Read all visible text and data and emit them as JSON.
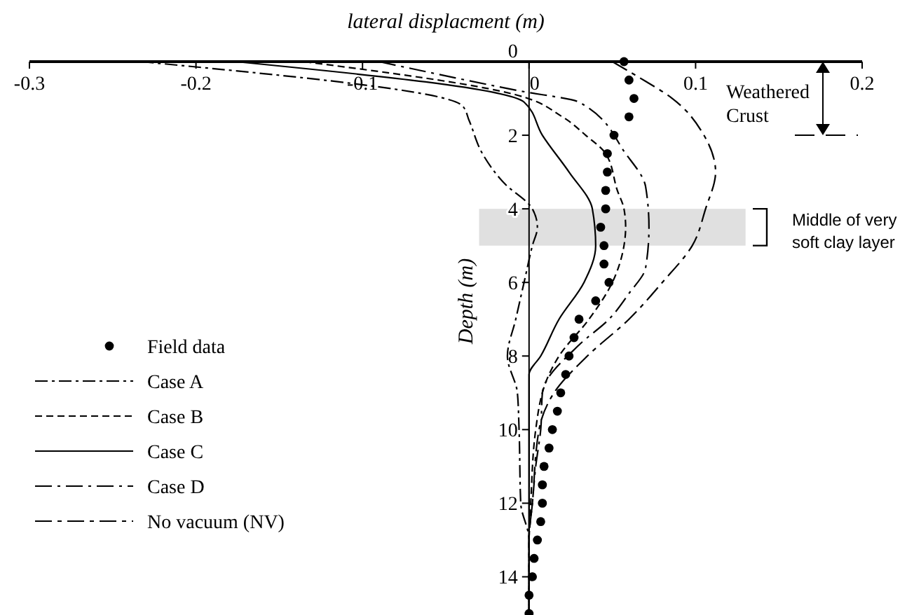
{
  "chart_data": {
    "type": "line",
    "xlabel": "lateral displacment (m)",
    "ylabel": "Depth (m)",
    "xlim": [
      -0.3,
      0.2
    ],
    "xticks": [
      -0.3,
      -0.2,
      -0.1,
      0,
      0.1,
      0.2
    ],
    "ylim": [
      15,
      0
    ],
    "yticks": [
      0,
      2,
      4,
      6,
      8,
      10,
      12,
      14
    ],
    "legend": "left",
    "series": [
      {
        "name": "Field data",
        "type": "scatter",
        "marker": "circle",
        "color": "#000000",
        "x": [
          0.057,
          0.06,
          0.063,
          0.06,
          0.051,
          0.047,
          0.047,
          0.046,
          0.046,
          0.043,
          0.045,
          0.045,
          0.048,
          0.04,
          0.03,
          0.027,
          0.024,
          0.022,
          0.019,
          0.017,
          0.014,
          0.012,
          0.009,
          0.008,
          0.008,
          0.007,
          0.005,
          0.003,
          0.002,
          0.0,
          0.0
        ],
        "values": [
          0,
          0.5,
          1,
          1.5,
          2,
          2.5,
          3,
          3.5,
          4,
          4.5,
          5,
          5.5,
          6,
          6.5,
          7,
          7.5,
          8,
          8.5,
          9,
          9.5,
          10,
          10.5,
          11,
          11.5,
          12,
          12.5,
          13,
          13.5,
          14,
          14.5,
          15
        ]
      },
      {
        "name": "Case A",
        "line_style": "dashdot",
        "color": "#000000",
        "x": [
          -0.233,
          -0.04,
          -0.036,
          -0.028,
          -0.015,
          0.002,
          0.005,
          0.002,
          -0.003,
          -0.008,
          -0.013,
          -0.007,
          -0.006,
          -0.005,
          0,
          0
        ],
        "values": [
          0,
          1.2,
          1.6,
          2.5,
          3.3,
          4,
          4.5,
          5,
          6,
          7,
          8,
          9,
          10,
          12,
          13,
          15
        ]
      },
      {
        "name": "Case B",
        "line_style": "dashed",
        "color": "#000000",
        "x": [
          -0.135,
          -0.008,
          0.02,
          0.034,
          0.046,
          0.053,
          0.057,
          0.058,
          0.057,
          0.05,
          0.036,
          0.018,
          0.012,
          0.004,
          0.001,
          0,
          0
        ],
        "values": [
          0,
          0.9,
          1.5,
          2,
          2.5,
          3.5,
          4,
          4.5,
          5,
          6,
          7,
          8,
          8.5,
          10,
          12,
          13,
          15
        ]
      },
      {
        "name": "Case C",
        "line_style": "solid",
        "color": "#000000",
        "x": [
          -0.176,
          -0.003,
          0.008,
          0.024,
          0.038,
          0.04,
          0.033,
          0.018,
          0.007,
          0,
          0
        ],
        "values": [
          0,
          1.1,
          2,
          3,
          4,
          5,
          6,
          7,
          8,
          8.5,
          15
        ]
      },
      {
        "name": "Case D",
        "line_style": "longdashdot",
        "color": "#000000",
        "x": [
          -0.09,
          -0.005,
          0.03,
          0.058,
          0.07,
          0.072,
          0.07,
          0.06,
          0.048,
          0.03,
          0.008,
          0.007,
          0.004,
          0.002,
          0,
          0
        ],
        "values": [
          0,
          0.8,
          1.1,
          2.5,
          3.4,
          4.5,
          5.6,
          6.3,
          7,
          7.7,
          9,
          10,
          11,
          12,
          13,
          15
        ]
      },
      {
        "name": "No vacuum (NV)",
        "line_style": "longdashshort",
        "color": "#000000",
        "x": [
          0.05,
          0.065,
          0.086,
          0.105,
          0.112,
          0.106,
          0.098,
          0.08,
          0.06,
          0.035,
          0.015,
          0.006,
          0.002,
          0,
          0
        ],
        "values": [
          0,
          0.4,
          1,
          2,
          3,
          4,
          5,
          6,
          7,
          8,
          9,
          10,
          12,
          13,
          15
        ]
      }
    ],
    "bands": [
      {
        "axis": "y",
        "from": 4,
        "to": 5,
        "color": "#e0e0e0"
      }
    ],
    "annotations": [
      "Weathered Crust",
      "Middle of very soft clay layer"
    ]
  }
}
